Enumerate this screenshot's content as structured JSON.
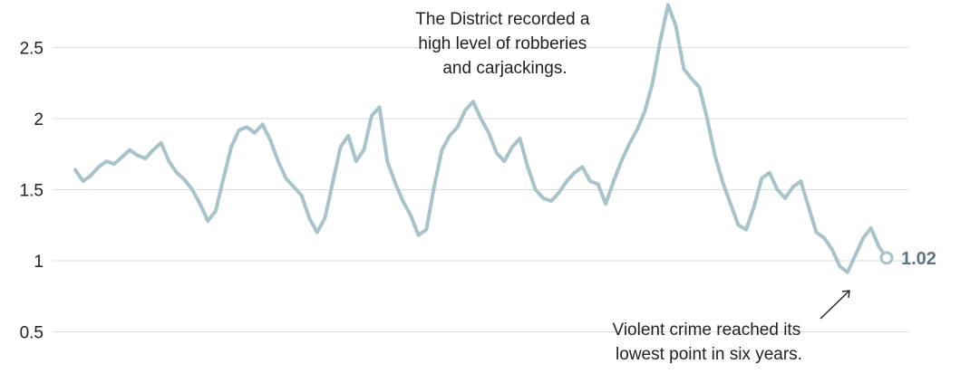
{
  "chart_data": {
    "type": "line",
    "title": "",
    "xlabel": "",
    "ylabel": "",
    "ylim": [
      0.5,
      2.9
    ],
    "y_ticks": [
      {
        "value": 2.5,
        "label": "2.5"
      },
      {
        "value": 2,
        "label": "2"
      },
      {
        "value": 1.5,
        "label": "1.5"
      },
      {
        "value": 1,
        "label": "1"
      },
      {
        "value": 0.5,
        "label": "0.5"
      }
    ],
    "grid": true,
    "line_color": "#a7c4cb",
    "end_marker_color": "#a7c4cb",
    "end_label_color": "#5d7681",
    "series": [
      {
        "values": [
          1.64,
          1.56,
          1.6,
          1.66,
          1.7,
          1.68,
          1.73,
          1.78,
          1.74,
          1.72,
          1.78,
          1.83,
          1.7,
          1.62,
          1.57,
          1.5,
          1.4,
          1.28,
          1.35,
          1.58,
          1.8,
          1.92,
          1.94,
          1.9,
          1.96,
          1.85,
          1.7,
          1.58,
          1.52,
          1.46,
          1.3,
          1.2,
          1.3,
          1.55,
          1.8,
          1.88,
          1.7,
          1.78,
          2.02,
          2.08,
          1.7,
          1.55,
          1.42,
          1.32,
          1.18,
          1.22,
          1.52,
          1.78,
          1.88,
          1.94,
          2.06,
          2.12,
          2.0,
          1.9,
          1.76,
          1.7,
          1.8,
          1.86,
          1.66,
          1.5,
          1.44,
          1.42,
          1.48,
          1.56,
          1.62,
          1.66,
          1.56,
          1.54,
          1.4,
          1.56,
          1.7,
          1.82,
          1.92,
          2.05,
          2.25,
          2.55,
          2.8,
          2.65,
          2.35,
          2.28,
          2.22,
          2.0,
          1.74,
          1.55,
          1.4,
          1.25,
          1.22,
          1.38,
          1.58,
          1.62,
          1.5,
          1.44,
          1.52,
          1.56,
          1.38,
          1.2,
          1.16,
          1.08,
          0.96,
          0.92,
          1.04,
          1.16,
          1.23,
          1.1,
          1.02
        ]
      }
    ],
    "end_value_label": "1.02"
  },
  "annotations": {
    "top_note": [
      "The District recorded a",
      "high level of robberies",
      "and carjackings."
    ],
    "bottom_note": [
      "Violent crime reached its",
      "lowest point in six years."
    ]
  }
}
